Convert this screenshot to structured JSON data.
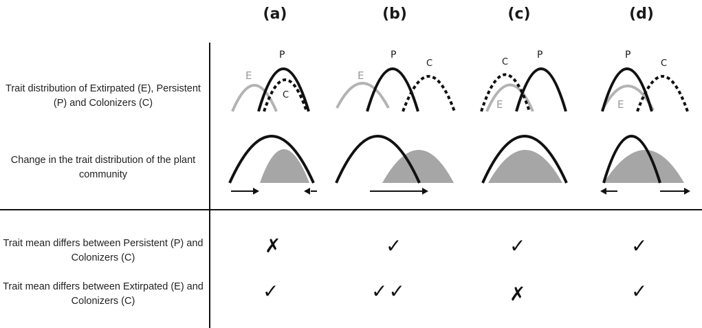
{
  "columns": [
    "(a)",
    "(b)",
    "(c)",
    "(d)"
  ],
  "rows": {
    "trait_distribution": "Trait distribution of Extirpated (E), Persistent (P) and Colonizers (C)",
    "community_change": "Change in the trait distribution of the plant community",
    "mean_pc": "Trait mean differs between Persistent (P) and Colonizers (C)",
    "mean_ec": "Trait mean differs between Extirpated (E) and Colonizers (C)"
  },
  "curve_labels": {
    "E": "E",
    "P": "P",
    "C": "C"
  },
  "marks": {
    "check": "✓",
    "cross": "✗",
    "mean_pc": [
      "✗",
      "✓",
      "✓",
      "✓"
    ],
    "mean_ec": [
      "✓",
      "✓✓",
      "✗",
      "✓"
    ]
  },
  "colors": {
    "persistent": "#111111",
    "extirpated": "#b3b3b3",
    "colonizers": "#111111",
    "community_fill": "#a6a6a6",
    "rule": "#111111"
  }
}
